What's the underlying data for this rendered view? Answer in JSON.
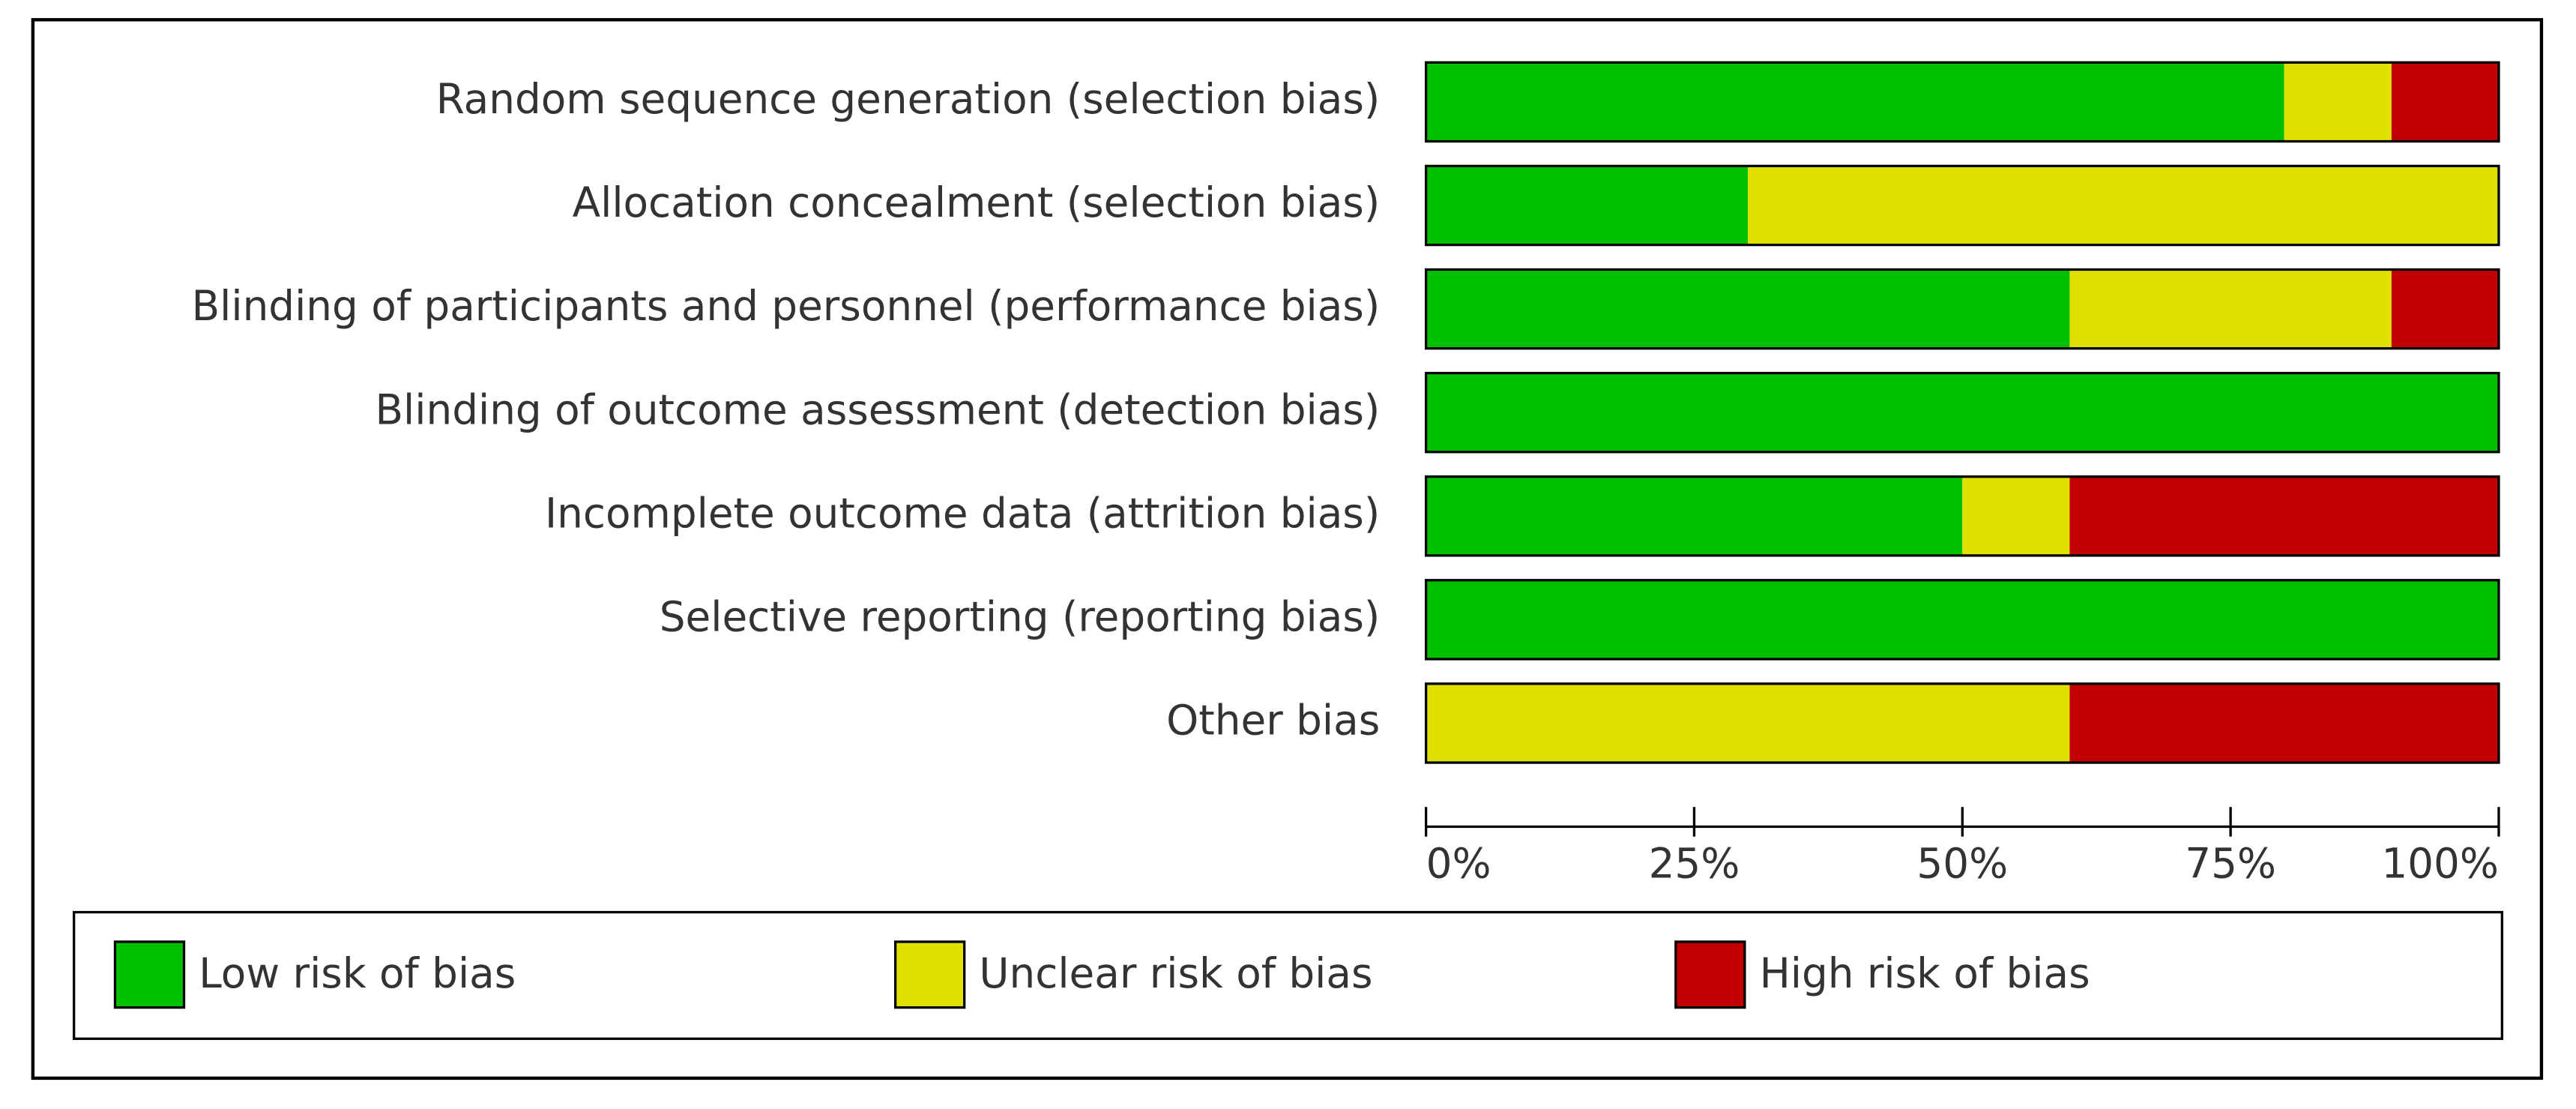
{
  "chart_data": {
    "type": "stacked-barh",
    "categories": [
      "Random sequence generation (selection bias)",
      "Allocation concealment (selection bias)",
      "Blinding of participants and personnel (performance bias)",
      "Blinding of outcome assessment (detection bias)",
      "Incomplete outcome data (attrition bias)",
      "Selective reporting (reporting bias)",
      "Other bias"
    ],
    "series": [
      {
        "name": "Low risk of bias",
        "color": "#00c000",
        "values": [
          80,
          30,
          60,
          100,
          50,
          100,
          0
        ]
      },
      {
        "name": "Unclear risk of bias",
        "color": "#e0e000",
        "values": [
          10,
          70,
          30,
          0,
          10,
          0,
          60
        ]
      },
      {
        "name": "High risk of bias",
        "color": "#c00000",
        "values": [
          10,
          0,
          10,
          0,
          40,
          0,
          40
        ]
      }
    ],
    "xlim": [
      0,
      100
    ],
    "xticks": [
      {
        "value": 0,
        "label": "0%"
      },
      {
        "value": 25,
        "label": "25%"
      },
      {
        "value": 50,
        "label": "50%"
      },
      {
        "value": 75,
        "label": "75%"
      },
      {
        "value": 100,
        "label": "100%"
      }
    ],
    "legend": "bottom"
  }
}
